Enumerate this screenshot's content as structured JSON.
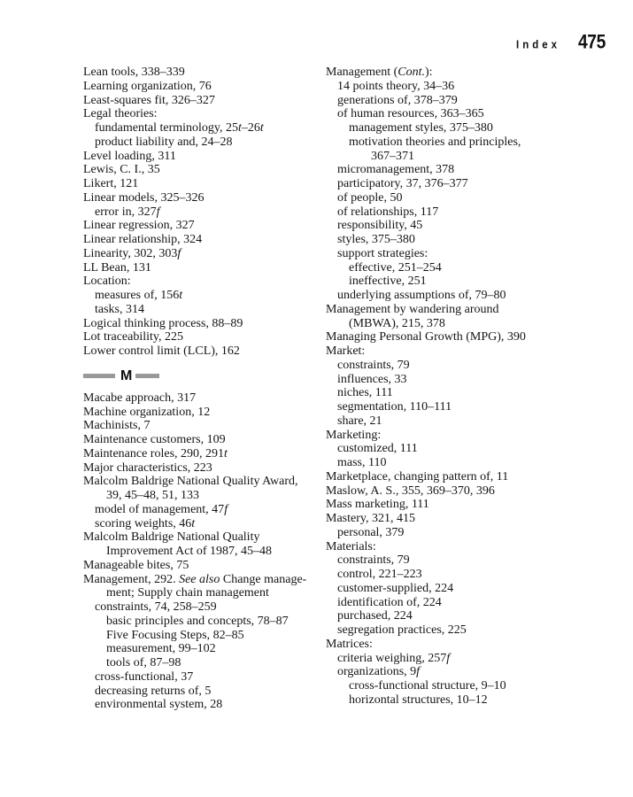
{
  "page": {
    "title_label": "Index",
    "page_number": "475"
  },
  "colors": {
    "section_rule_gray": "#999999",
    "text": "#151515",
    "background": "#ffffff"
  },
  "sections": [
    {
      "letter": "M"
    }
  ],
  "columns": {
    "left": [
      {
        "i": 0,
        "t": "Lean tools, 338–339"
      },
      {
        "i": 0,
        "t": "Learning organization, 76"
      },
      {
        "i": 0,
        "t": "Least-squares fit, 326–327"
      },
      {
        "i": 0,
        "t": "Legal theories:"
      },
      {
        "i": 1,
        "t": "fundamental terminology, 25*t*–26*t*"
      },
      {
        "i": 1,
        "t": "product liability and, 24–28"
      },
      {
        "i": 0,
        "t": "Level loading, 311"
      },
      {
        "i": 0,
        "t": "Lewis, C. I., 35"
      },
      {
        "i": 0,
        "t": "Likert, 121"
      },
      {
        "i": 0,
        "t": "Linear models, 325–326"
      },
      {
        "i": 1,
        "t": "error in, 327*f*"
      },
      {
        "i": 0,
        "t": "Linear regression, 327"
      },
      {
        "i": 0,
        "t": "Linear relationship, 324"
      },
      {
        "i": 0,
        "t": "Linearity, 302, 303*f*"
      },
      {
        "i": 0,
        "t": "LL Bean, 131"
      },
      {
        "i": 0,
        "t": "Location:"
      },
      {
        "i": 1,
        "t": "measures of, 156*t*"
      },
      {
        "i": 1,
        "t": "tasks, 314"
      },
      {
        "i": 0,
        "t": "Logical thinking process, 88–89"
      },
      {
        "i": 0,
        "t": "Lot traceability, 225"
      },
      {
        "i": 0,
        "t": "Lower control limit (LCL), 162"
      },
      {
        "sec": "M"
      },
      {
        "i": 0,
        "t": "Macabe approach, 317"
      },
      {
        "i": 0,
        "t": "Machine organization, 12"
      },
      {
        "i": 0,
        "t": "Machinists, 7"
      },
      {
        "i": 0,
        "t": "Maintenance customers, 109"
      },
      {
        "i": 0,
        "t": "Maintenance roles, 290, 291*t*"
      },
      {
        "i": 0,
        "t": "Major characteristics, 223"
      },
      {
        "i": 0,
        "t": "Malcolm Baldrige National Quality Award,"
      },
      {
        "i": 2,
        "t": "39, 45–48, 51, 133"
      },
      {
        "i": 1,
        "t": "model of management, 47*f*"
      },
      {
        "i": 1,
        "t": "scoring weights, 46*t*"
      },
      {
        "i": 0,
        "t": "Malcolm Baldrige National Quality"
      },
      {
        "i": 2,
        "t": "Improvement Act of 1987, 45–48"
      },
      {
        "i": 0,
        "t": "Manageable bites, 75"
      },
      {
        "i": 0,
        "t": "Management, 292. *See also* Change manage-"
      },
      {
        "i": 2,
        "t": "ment; Supply chain management"
      },
      {
        "i": 1,
        "t": "constraints, 74, 258–259"
      },
      {
        "i": 2,
        "t": "basic principles and concepts, 78–87"
      },
      {
        "i": 2,
        "t": "Five Focusing Steps, 82–85"
      },
      {
        "i": 2,
        "t": "measurement, 99–102"
      },
      {
        "i": 2,
        "t": "tools of, 87–98"
      },
      {
        "i": 1,
        "t": "cross-functional, 37"
      },
      {
        "i": 1,
        "t": "decreasing returns of, 5"
      },
      {
        "i": 1,
        "t": "environmental system, 28"
      }
    ],
    "right": [
      {
        "i": 0,
        "t": "Management (*Cont.*):"
      },
      {
        "i": 1,
        "t": "14 points theory, 34–36"
      },
      {
        "i": 1,
        "t": "generations of, 378–379"
      },
      {
        "i": 1,
        "t": "of human resources, 363–365"
      },
      {
        "i": 2,
        "t": "management styles, 375–380"
      },
      {
        "i": 2,
        "t": "motivation theories and principles,"
      },
      {
        "i": 4,
        "t": "367–371"
      },
      {
        "i": 1,
        "t": "micromanagement, 378"
      },
      {
        "i": 1,
        "t": "participatory, 37, 376–377"
      },
      {
        "i": 1,
        "t": "of people, 50"
      },
      {
        "i": 1,
        "t": "of relationships, 117"
      },
      {
        "i": 1,
        "t": "responsibility, 45"
      },
      {
        "i": 1,
        "t": "styles, 375–380"
      },
      {
        "i": 1,
        "t": "support strategies:"
      },
      {
        "i": 2,
        "t": "effective, 251–254"
      },
      {
        "i": 2,
        "t": "ineffective, 251"
      },
      {
        "i": 1,
        "t": "underlying assumptions of, 79–80"
      },
      {
        "i": 0,
        "t": "Management by wandering around"
      },
      {
        "i": 2,
        "t": "(MBWA), 215, 378"
      },
      {
        "i": 0,
        "t": "Managing Personal Growth (MPG), 390"
      },
      {
        "i": 0,
        "t": "Market:"
      },
      {
        "i": 1,
        "t": "constraints, 79"
      },
      {
        "i": 1,
        "t": "influences, 33"
      },
      {
        "i": 1,
        "t": "niches, 111"
      },
      {
        "i": 1,
        "t": "segmentation, 110–111"
      },
      {
        "i": 1,
        "t": "share, 21"
      },
      {
        "i": 0,
        "t": "Marketing:"
      },
      {
        "i": 1,
        "t": "customized, 111"
      },
      {
        "i": 1,
        "t": "mass, 110"
      },
      {
        "i": 0,
        "t": "Marketplace, changing pattern of, 11"
      },
      {
        "i": 0,
        "t": "Maslow, A. S., 355, 369–370, 396"
      },
      {
        "i": 0,
        "t": "Mass marketing, 111"
      },
      {
        "i": 0,
        "t": "Mastery, 321, 415"
      },
      {
        "i": 1,
        "t": "personal, 379"
      },
      {
        "i": 0,
        "t": "Materials:"
      },
      {
        "i": 1,
        "t": "constraints, 79"
      },
      {
        "i": 1,
        "t": "control, 221–223"
      },
      {
        "i": 1,
        "t": "customer-supplied, 224"
      },
      {
        "i": 1,
        "t": "identification of, 224"
      },
      {
        "i": 1,
        "t": "purchased, 224"
      },
      {
        "i": 1,
        "t": "segregation practices, 225"
      },
      {
        "i": 0,
        "t": "Matrices:"
      },
      {
        "i": 1,
        "t": "criteria weighing, 257*f*"
      },
      {
        "i": 1,
        "t": "organizations, 9*f*"
      },
      {
        "i": 2,
        "t": "cross-functional structure, 9–10"
      },
      {
        "i": 2,
        "t": "horizontal structures, 10–12"
      }
    ]
  }
}
